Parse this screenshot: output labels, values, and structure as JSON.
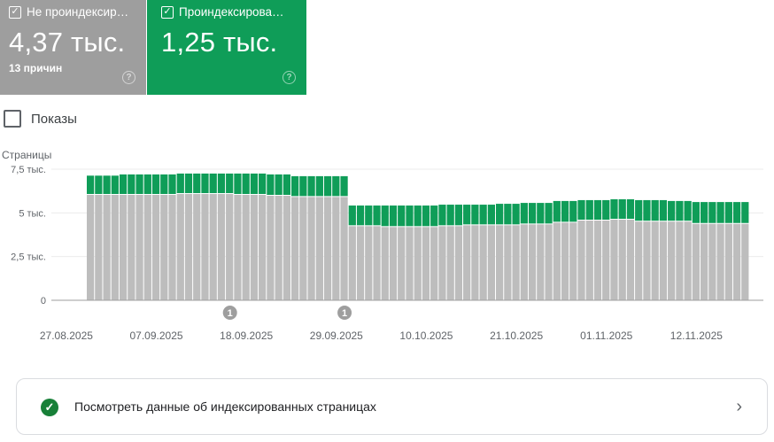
{
  "cards": [
    {
      "title": "Не проиндексир…",
      "value": "4,37 тыс.",
      "subtitle": "13 причин",
      "checked": true,
      "color": "#9e9e9e"
    },
    {
      "title": "Проиндексирова…",
      "value": "1,25 тыс.",
      "checked": true,
      "color": "#0f9d58"
    }
  ],
  "impressions_toggle": {
    "label": "Показы",
    "checked": false
  },
  "chart_data": {
    "type": "bar",
    "stacked": true,
    "ylabel": "Страницы",
    "ylim": [
      0,
      7500
    ],
    "yticks": [
      {
        "value": 0,
        "label": "0"
      },
      {
        "value": 2500,
        "label": "2,5 тыс."
      },
      {
        "value": 5000,
        "label": "5 тыс."
      },
      {
        "value": 7500,
        "label": "7,5 тыс."
      }
    ],
    "xticks": [
      "27.08.2025",
      "07.09.2025",
      "18.09.2025",
      "29.09.2025",
      "10.10.2025",
      "21.10.2025",
      "01.11.2025",
      "12.11.2025"
    ],
    "grid": true,
    "categories": [
      "30.08.2025",
      "31.08.2025",
      "01.09.2025",
      "02.09.2025",
      "03.09.2025",
      "04.09.2025",
      "05.09.2025",
      "06.09.2025",
      "07.09.2025",
      "08.09.2025",
      "09.09.2025",
      "10.09.2025",
      "11.09.2025",
      "12.09.2025",
      "13.09.2025",
      "14.09.2025",
      "15.09.2025",
      "16.09.2025",
      "17.09.2025",
      "18.09.2025",
      "19.09.2025",
      "20.09.2025",
      "21.09.2025",
      "22.09.2025",
      "23.09.2025",
      "24.09.2025",
      "25.09.2025",
      "26.09.2025",
      "27.09.2025",
      "28.09.2025",
      "29.09.2025",
      "30.09.2025",
      "01.10.2025",
      "02.10.2025",
      "03.10.2025",
      "04.10.2025",
      "05.10.2025",
      "06.10.2025",
      "07.10.2025",
      "08.10.2025",
      "09.10.2025",
      "10.10.2025",
      "11.10.2025",
      "12.10.2025",
      "13.10.2025",
      "14.10.2025",
      "15.10.2025",
      "16.10.2025",
      "17.10.2025",
      "18.10.2025",
      "19.10.2025",
      "20.10.2025",
      "21.10.2025",
      "22.10.2025",
      "23.10.2025",
      "24.10.2025",
      "25.10.2025",
      "26.10.2025",
      "27.10.2025",
      "28.10.2025",
      "29.10.2025",
      "30.10.2025",
      "31.10.2025",
      "01.11.2025",
      "02.11.2025",
      "03.11.2025",
      "04.11.2025",
      "05.11.2025",
      "06.11.2025",
      "07.11.2025",
      "08.11.2025",
      "09.11.2025",
      "10.11.2025",
      "11.11.2025",
      "12.11.2025",
      "13.11.2025",
      "14.11.2025",
      "15.11.2025",
      "16.11.2025",
      "17.11.2025",
      "18.11.2025"
    ],
    "series": [
      {
        "name": "Не проиндексированы",
        "color": "#bdbdbd",
        "values": [
          6030,
          6030,
          6030,
          6030,
          6030,
          6030,
          6030,
          6030,
          6030,
          6030,
          6030,
          6080,
          6080,
          6080,
          6080,
          6080,
          6080,
          6080,
          6030,
          6030,
          6030,
          6030,
          5980,
          5980,
          5980,
          5910,
          5910,
          5910,
          5910,
          5910,
          5910,
          5910,
          4240,
          4240,
          4240,
          4240,
          4190,
          4190,
          4190,
          4190,
          4190,
          4190,
          4190,
          4240,
          4240,
          4240,
          4290,
          4290,
          4290,
          4290,
          4290,
          4290,
          4290,
          4340,
          4340,
          4340,
          4340,
          4440,
          4440,
          4440,
          4560,
          4560,
          4560,
          4560,
          4610,
          4610,
          4610,
          4500,
          4500,
          4500,
          4500,
          4500,
          4500,
          4500,
          4370,
          4370,
          4370,
          4370,
          4370,
          4370,
          4370
        ]
      },
      {
        "name": "Проиндексированы",
        "color": "#0f9d58",
        "values": [
          1100,
          1100,
          1100,
          1100,
          1170,
          1170,
          1170,
          1170,
          1170,
          1170,
          1170,
          1170,
          1170,
          1170,
          1170,
          1170,
          1170,
          1170,
          1220,
          1220,
          1220,
          1220,
          1220,
          1220,
          1220,
          1190,
          1190,
          1190,
          1190,
          1190,
          1190,
          1190,
          1180,
          1180,
          1180,
          1180,
          1230,
          1230,
          1230,
          1230,
          1230,
          1230,
          1230,
          1230,
          1230,
          1230,
          1180,
          1180,
          1180,
          1180,
          1230,
          1230,
          1230,
          1230,
          1230,
          1230,
          1230,
          1240,
          1240,
          1240,
          1170,
          1170,
          1170,
          1170,
          1170,
          1170,
          1170,
          1230,
          1230,
          1230,
          1230,
          1180,
          1180,
          1180,
          1250,
          1250,
          1250,
          1250,
          1250,
          1250,
          1250
        ]
      }
    ],
    "annotations": [
      {
        "date": "16.09.2025",
        "label": "1"
      },
      {
        "date": "30.09.2025",
        "label": "1"
      }
    ]
  },
  "footer_link": {
    "label": "Посмотреть данные об индексированных страницах",
    "icon": "check-circle-icon",
    "chevron": "›"
  }
}
